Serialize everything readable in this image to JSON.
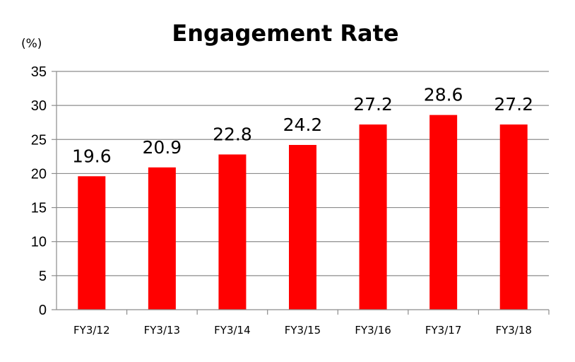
{
  "chart_data": {
    "type": "bar",
    "title": "Engagement Rate",
    "unit_label": "(%)",
    "categories": [
      "FY3/12",
      "FY3/13",
      "FY3/14",
      "FY3/15",
      "FY3/16",
      "FY3/17",
      "FY3/18"
    ],
    "values": [
      19.6,
      20.9,
      22.8,
      24.2,
      27.2,
      28.6,
      27.2
    ],
    "data_labels": [
      "19.6",
      "20.9",
      "22.8",
      "24.2",
      "27.2",
      "28.6",
      "27.2"
    ],
    "yticks": [
      0,
      5,
      10,
      15,
      20,
      25,
      30,
      35
    ],
    "ylim": [
      0,
      35
    ],
    "grid": true,
    "legend": "none",
    "colors": {
      "bar": "#ff0000",
      "grid": "#8c8c8c",
      "text": "#000000"
    }
  }
}
